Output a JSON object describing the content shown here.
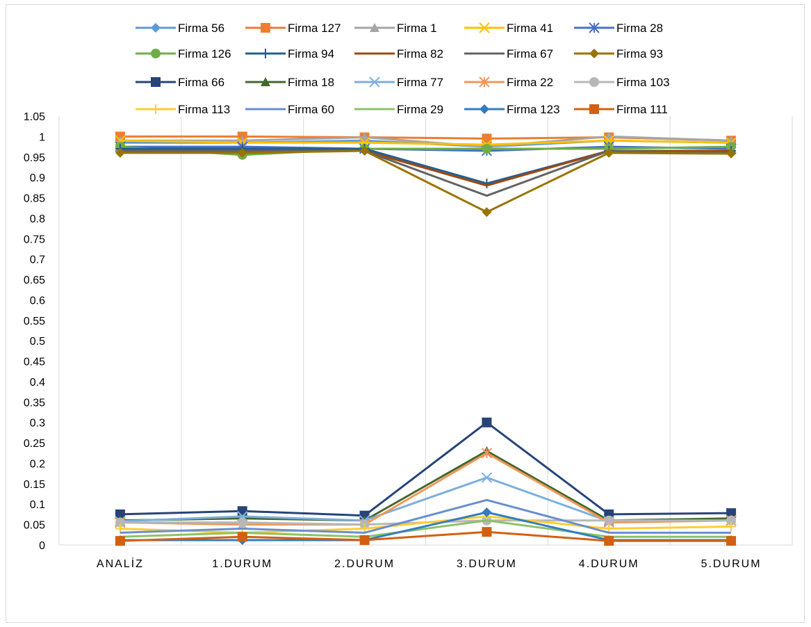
{
  "chart_data": {
    "type": "line",
    "categories": [
      "ANALİZ",
      "1.DURUM",
      "2.DURUM",
      "3.DURUM",
      "4.DURUM",
      "5.DURUM"
    ],
    "ylim": [
      0,
      1.05
    ],
    "yticks": [
      "0",
      "0.05",
      "0.1",
      "0.15",
      "0.2",
      "0.25",
      "0.3",
      "0.35",
      "0.4",
      "0.45",
      "0.5",
      "0.55",
      "0.6",
      "0.65",
      "0.7",
      "0.75",
      "0.8",
      "0.85",
      "0.9",
      "0.95",
      "1",
      "1.05"
    ],
    "grid": "vertical",
    "legend": "top",
    "series": [
      {
        "name": "Firma 56",
        "color": "#5b9bd5",
        "marker": "diamond",
        "values": [
          0.985,
          0.985,
          0.99,
          0.975,
          0.99,
          0.985
        ]
      },
      {
        "name": "Firma 127",
        "color": "#ed7d31",
        "marker": "square",
        "values": [
          1.0,
          1.0,
          0.998,
          0.995,
          0.998,
          0.99
        ]
      },
      {
        "name": "Firma 1",
        "color": "#a5a5a5",
        "marker": "triangle",
        "values": [
          0.99,
          0.99,
          0.998,
          0.975,
          1.0,
          0.99
        ]
      },
      {
        "name": "Firma 41",
        "color": "#ffc000",
        "marker": "x",
        "values": [
          0.99,
          0.985,
          0.985,
          0.98,
          0.99,
          0.985
        ]
      },
      {
        "name": "Firma 28",
        "color": "#4472c4",
        "marker": "star",
        "values": [
          0.975,
          0.975,
          0.97,
          0.965,
          0.975,
          0.97
        ]
      },
      {
        "name": "Firma 126",
        "color": "#70ad47",
        "marker": "circle",
        "values": [
          0.975,
          0.955,
          0.97,
          0.97,
          0.97,
          0.975
        ]
      },
      {
        "name": "Firma 94",
        "color": "#255e91",
        "marker": "plus",
        "values": [
          0.97,
          0.97,
          0.97,
          0.885,
          0.965,
          0.965
        ]
      },
      {
        "name": "Firma 82",
        "color": "#9e480e",
        "marker": "none",
        "values": [
          0.965,
          0.965,
          0.965,
          0.88,
          0.965,
          0.965
        ]
      },
      {
        "name": "Firma 67",
        "color": "#636363",
        "marker": "none",
        "values": [
          0.965,
          0.965,
          0.965,
          0.855,
          0.965,
          0.96
        ]
      },
      {
        "name": "Firma 93",
        "color": "#997300",
        "marker": "diamond",
        "values": [
          0.96,
          0.96,
          0.965,
          0.815,
          0.96,
          0.958
        ]
      },
      {
        "name": "Firma 66",
        "color": "#264478",
        "marker": "square",
        "values": [
          0.075,
          0.083,
          0.072,
          0.3,
          0.075,
          0.078
        ]
      },
      {
        "name": "Firma 18",
        "color": "#43682b",
        "marker": "triangle",
        "values": [
          0.06,
          0.065,
          0.06,
          0.23,
          0.06,
          0.065
        ]
      },
      {
        "name": "Firma 77",
        "color": "#7cafdd",
        "marker": "x",
        "values": [
          0.058,
          0.07,
          0.06,
          0.165,
          0.058,
          0.06
        ]
      },
      {
        "name": "Firma 22",
        "color": "#f1975a",
        "marker": "star",
        "values": [
          0.055,
          0.05,
          0.05,
          0.225,
          0.055,
          0.06
        ]
      },
      {
        "name": "Firma 103",
        "color": "#b7b7b7",
        "marker": "circle",
        "values": [
          0.055,
          0.055,
          0.05,
          0.06,
          0.06,
          0.06
        ]
      },
      {
        "name": "Firma 113",
        "color": "#ffcd33",
        "marker": "plus",
        "values": [
          0.04,
          0.03,
          0.04,
          0.07,
          0.04,
          0.045
        ]
      },
      {
        "name": "Firma 60",
        "color": "#698ed0",
        "marker": "none",
        "values": [
          0.03,
          0.04,
          0.03,
          0.11,
          0.03,
          0.03
        ]
      },
      {
        "name": "Firma 29",
        "color": "#8cc168",
        "marker": "none",
        "values": [
          0.02,
          0.03,
          0.02,
          0.06,
          0.02,
          0.02
        ]
      },
      {
        "name": "Firma 123",
        "color": "#327dc2",
        "marker": "diamond",
        "values": [
          0.012,
          0.012,
          0.012,
          0.08,
          0.012,
          0.012
        ]
      },
      {
        "name": "Firma 111",
        "color": "#d26012",
        "marker": "square",
        "values": [
          0.01,
          0.02,
          0.012,
          0.032,
          0.01,
          0.01
        ]
      }
    ]
  }
}
